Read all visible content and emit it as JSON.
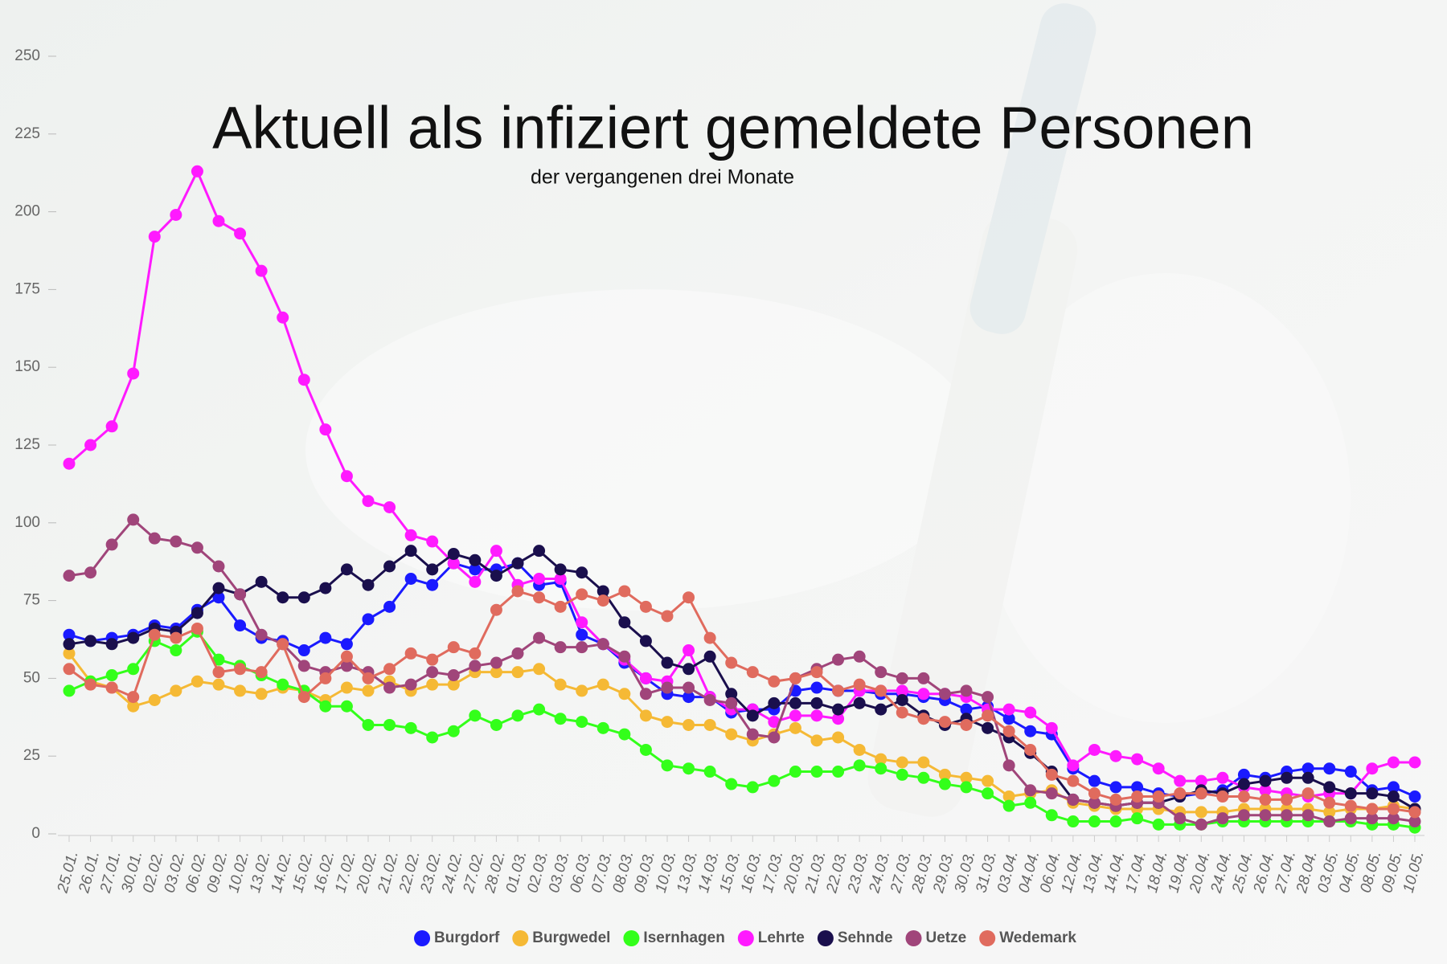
{
  "chart_data": {
    "type": "line",
    "title": "Aktuell als infiziert gemeldete Personen",
    "subtitle": "der vergangenen drei Monate",
    "categories": [
      "25.01.",
      "26.01.",
      "27.01.",
      "30.01.",
      "02.02.",
      "03.02.",
      "06.02.",
      "09.02.",
      "10.02.",
      "13.02.",
      "14.02.",
      "15.02.",
      "16.02.",
      "17.02.",
      "20.02.",
      "21.02.",
      "22.02.",
      "23.02.",
      "24.02.",
      "27.02.",
      "28.02.",
      "01.03.",
      "02.03.",
      "03.03.",
      "06.03.",
      "07.03.",
      "08.03.",
      "09.03.",
      "10.03.",
      "13.03.",
      "14.03.",
      "15.03.",
      "16.03.",
      "17.03.",
      "20.03.",
      "21.03.",
      "22.03.",
      "23.03.",
      "24.03.",
      "27.03.",
      "28.03.",
      "29.03.",
      "30.03.",
      "31.03.",
      "03.04.",
      "04.04.",
      "06.04.",
      "12.04.",
      "13.04.",
      "14.04.",
      "17.04.",
      "18.04.",
      "19.04.",
      "20.04.",
      "24.04.",
      "25.04.",
      "26.04.",
      "27.04.",
      "28.04.",
      "03.05.",
      "04.05.",
      "08.05.",
      "09.05.",
      "10.05."
    ],
    "series": [
      {
        "name": "Burgdorf",
        "color": "#1a1aff",
        "values": [
          64,
          62,
          63,
          64,
          67,
          66,
          72,
          76,
          67,
          63,
          62,
          59,
          63,
          61,
          69,
          73,
          82,
          80,
          87,
          85,
          85,
          87,
          80,
          81,
          64,
          61,
          55,
          50,
          45,
          44,
          44,
          39,
          40,
          40,
          46,
          47,
          46,
          46,
          45,
          45,
          44,
          43,
          40,
          41,
          37,
          33,
          32,
          21,
          17,
          15,
          15,
          13,
          12,
          13,
          14,
          19,
          18,
          20,
          21,
          21,
          20,
          14,
          15,
          12
        ]
      },
      {
        "name": "Burgwedel",
        "color": "#f5b935",
        "values": [
          58,
          49,
          47,
          41,
          43,
          46,
          49,
          48,
          46,
          45,
          47,
          46,
          43,
          47,
          46,
          49,
          46,
          48,
          48,
          52,
          52,
          52,
          53,
          48,
          46,
          48,
          45,
          38,
          36,
          35,
          35,
          32,
          30,
          32,
          34,
          30,
          31,
          27,
          24,
          23,
          23,
          19,
          18,
          17,
          12,
          13,
          14,
          10,
          9,
          8,
          8,
          8,
          7,
          7,
          7,
          8,
          8,
          8,
          8,
          7,
          8,
          8,
          9,
          8
        ]
      },
      {
        "name": "Isernhagen",
        "color": "#33ff1a",
        "values": [
          46,
          49,
          51,
          53,
          62,
          59,
          65,
          56,
          54,
          51,
          48,
          46,
          41,
          41,
          35,
          35,
          34,
          31,
          33,
          38,
          35,
          38,
          40,
          37,
          36,
          34,
          32,
          27,
          22,
          21,
          20,
          16,
          15,
          17,
          20,
          20,
          20,
          22,
          21,
          19,
          18,
          16,
          15,
          13,
          9,
          10,
          6,
          4,
          4,
          4,
          5,
          3,
          3,
          3,
          4,
          4,
          4,
          4,
          4,
          4,
          4,
          3,
          3,
          2
        ]
      },
      {
        "name": "Lehrte",
        "color": "#ff1aff",
        "values": [
          119,
          125,
          131,
          148,
          192,
          199,
          213,
          197,
          193,
          181,
          166,
          146,
          130,
          115,
          107,
          105,
          96,
          94,
          87,
          81,
          91,
          80,
          82,
          82,
          68,
          61,
          56,
          50,
          49,
          59,
          44,
          40,
          40,
          36,
          38,
          38,
          37,
          46,
          46,
          46,
          45,
          45,
          44,
          40,
          40,
          39,
          34,
          22,
          27,
          25,
          24,
          21,
          17,
          17,
          18,
          15,
          14,
          13,
          12,
          13,
          13,
          21,
          23,
          23
        ]
      },
      {
        "name": "Sehnde",
        "color": "#1a0f4d",
        "values": [
          61,
          62,
          61,
          63,
          66,
          65,
          71,
          79,
          77,
          81,
          76,
          76,
          79,
          85,
          80,
          86,
          91,
          85,
          90,
          88,
          83,
          87,
          91,
          85,
          84,
          78,
          68,
          62,
          55,
          53,
          57,
          45,
          38,
          42,
          42,
          42,
          40,
          42,
          40,
          43,
          38,
          35,
          37,
          34,
          31,
          26,
          20,
          11,
          10,
          9,
          10,
          10,
          12,
          14,
          13,
          16,
          17,
          18,
          18,
          15,
          13,
          13,
          12,
          8
        ]
      },
      {
        "name": "Uetze",
        "color": "#a0457a",
        "values": [
          83,
          84,
          93,
          101,
          95,
          94,
          92,
          86,
          77,
          64,
          61,
          54,
          52,
          54,
          52,
          47,
          48,
          52,
          51,
          54,
          55,
          58,
          63,
          60,
          60,
          61,
          57,
          45,
          47,
          47,
          43,
          42,
          32,
          31,
          50,
          53,
          56,
          57,
          52,
          50,
          50,
          45,
          46,
          44,
          22,
          14,
          13,
          11,
          10,
          9,
          10,
          10,
          5,
          3,
          5,
          6,
          6,
          6,
          6,
          4,
          5,
          5,
          5,
          4
        ]
      },
      {
        "name": "Wedemark",
        "color": "#e06b5e",
        "values": [
          53,
          48,
          47,
          44,
          64,
          63,
          66,
          52,
          53,
          52,
          61,
          44,
          50,
          57,
          50,
          53,
          58,
          56,
          60,
          58,
          72,
          78,
          76,
          73,
          77,
          75,
          78,
          73,
          70,
          76,
          63,
          55,
          52,
          49,
          50,
          52,
          46,
          48,
          46,
          39,
          37,
          36,
          35,
          38,
          33,
          27,
          19,
          17,
          13,
          11,
          12,
          12,
          13,
          13,
          12,
          12,
          11,
          11,
          13,
          10,
          9,
          8,
          8,
          7
        ]
      }
    ],
    "ylim": [
      0,
      250
    ],
    "yticks": [
      0,
      25,
      50,
      75,
      100,
      125,
      150,
      175,
      200,
      225,
      250
    ],
    "legend": "bottom"
  }
}
